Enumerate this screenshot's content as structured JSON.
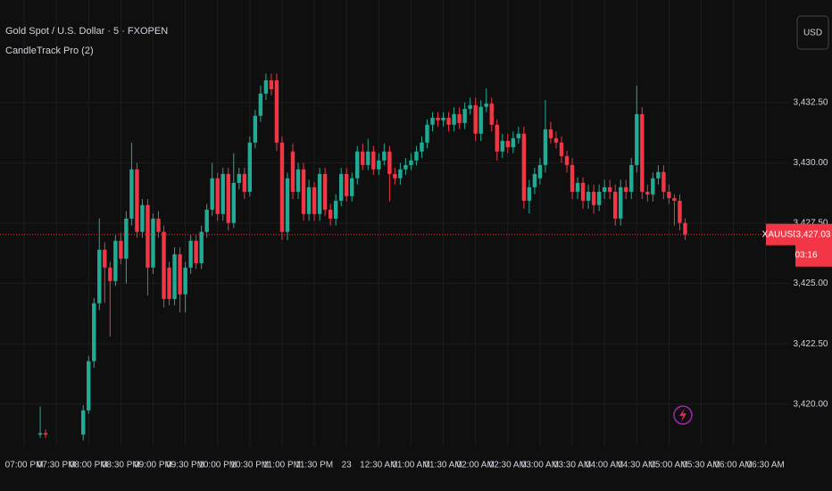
{
  "chart_data": {
    "type": "candlestick",
    "title": "Gold Spot / U.S. Dollar · 5 · FXOPEN",
    "indicator": "CandleTrack Pro (2)",
    "currency_button": "USD",
    "symbol_label": "XAUUSD",
    "last_price": {
      "value": 3427.03,
      "label": "3,427.03"
    },
    "countdown": "03:16",
    "up_color": "#22ab94",
    "down_color": "#f23645",
    "grid": true,
    "ylim": [
      3418.25,
      3436.75
    ],
    "yticks": [
      {
        "value": 3420,
        "label": "3,420.00"
      },
      {
        "value": 3422.5,
        "label": "3,422.50"
      },
      {
        "value": 3425,
        "label": "3,425.00"
      },
      {
        "value": 3427.5,
        "label": "3,427.50"
      },
      {
        "value": 3430,
        "label": "3,430.00"
      },
      {
        "value": 3432.5,
        "label": "3,432.50"
      }
    ],
    "categories": [
      "07:00 PM",
      null,
      null,
      null,
      null,
      null,
      "07:30 PM",
      null,
      null,
      null,
      null,
      null,
      "08:00 PM",
      null,
      null,
      null,
      null,
      null,
      "08:30 PM",
      null,
      null,
      null,
      null,
      null,
      "09:00 PM",
      null,
      null,
      null,
      null,
      null,
      "09:30 PM",
      null,
      null,
      null,
      null,
      null,
      "10:00 PM",
      null,
      null,
      null,
      null,
      null,
      "10:30 PM",
      null,
      null,
      null,
      null,
      null,
      "11:00 PM",
      null,
      null,
      null,
      null,
      null,
      "11:30 PM",
      null,
      null,
      null,
      null,
      null,
      "23",
      null,
      null,
      null,
      null,
      null,
      "12:30 AM",
      null,
      null,
      null,
      null,
      null,
      "01:00 AM",
      null,
      null,
      null,
      null,
      null,
      "01:30 AM",
      null,
      null,
      null,
      null,
      null,
      "02:00 AM",
      null,
      null,
      null,
      null,
      null,
      "02:30 AM",
      null,
      null,
      null,
      null,
      null,
      "03:00 AM",
      null,
      null,
      null,
      null,
      null,
      "03:30 AM",
      null,
      null,
      null,
      null,
      null,
      "04:00 AM",
      null,
      null,
      null,
      null,
      null,
      "04:30 AM",
      null,
      null,
      null,
      null,
      null,
      "05:00 AM",
      null,
      null,
      null,
      null,
      null,
      "05:30 AM",
      null,
      null,
      null,
      null,
      null,
      "06:00 AM",
      null,
      null,
      null,
      null,
      null,
      "06:30 AM"
    ],
    "open": [
      null,
      null,
      null,
      3418.74,
      3418.8,
      null,
      null,
      null,
      null,
      null,
      null,
      3418.74,
      3419.74,
      3421.78,
      3424.18,
      3426.4,
      3425.66,
      3425.1,
      3426.77,
      3426.03,
      3427.69,
      3429.73,
      3427.14,
      3428.25,
      3425.66,
      3427.69,
      3427.14,
      3425.66,
      3424.36,
      3426.21,
      3424.55,
      3425.66,
      3426.77,
      3425.84,
      3427.14,
      3428.06,
      3429.36,
      3427.88,
      3429.54,
      3427.51,
      3429.17,
      3429.54,
      3428.8,
      3430.84,
      3431.95,
      3432.87,
      3433.42,
      3433.42,
      3430.84,
      3427.14,
      3430.47,
      3428.8,
      3429.73,
      3427.88,
      3428.99,
      3427.88,
      3429.54,
      3428.06,
      3427.69,
      3428.43,
      3429.54,
      3428.62,
      3429.36,
      3430.47,
      3429.91,
      3430.47,
      3429.73,
      3430.1,
      3430.47,
      3429.54,
      3429.36,
      3429.73,
      3429.91,
      3430.1,
      3430.47,
      3430.84,
      3431.58,
      3431.87,
      3431.76,
      3431.87,
      3431.58,
      3432.02,
      3431.65,
      3432.24,
      3432.39,
      3431.21,
      3432.32,
      3432.46,
      3431.58,
      3430.47,
      3430.91,
      3430.65,
      3431.02,
      3431.21,
      3428.43,
      3428.99,
      3429.36,
      3429.91,
      3431.39,
      3431.02,
      3430.84,
      3430.28,
      3429.91,
      3428.8,
      3429.17,
      3428.43,
      3428.8,
      3428.25,
      3428.8,
      3428.99,
      3428.8,
      3427.69,
      3428.99,
      3428.8,
      3429.91,
      3432.02,
      3428.8,
      3428.69,
      3429.36,
      3429.62,
      3428.8,
      3428.54,
      3428.43,
      3427.51,
      null,
      null,
      null,
      null,
      null,
      null,
      null,
      null,
      null,
      null,
      null,
      null,
      null,
      null,
      null
    ],
    "high": [
      null,
      null,
      null,
      3419.9,
      3418.95,
      null,
      null,
      null,
      null,
      null,
      null,
      3419.95,
      3422.0,
      3424.4,
      3427.7,
      3426.7,
      3425.9,
      3427.0,
      3427.1,
      3428.0,
      3430.84,
      3430.0,
      3428.5,
      3428.5,
      3427.9,
      3428.0,
      3427.4,
      3425.9,
      3426.5,
      3426.5,
      3425.9,
      3427.0,
      3427.0,
      3427.4,
      3428.3,
      3430.0,
      3429.6,
      3429.8,
      3429.8,
      3430.4,
      3429.8,
      3429.8,
      3431.1,
      3432.2,
      3433.2,
      3433.7,
      3433.7,
      3433.7,
      3431.1,
      3429.6,
      3430.8,
      3430.0,
      3430.0,
      3429.3,
      3429.2,
      3429.8,
      3429.8,
      3428.3,
      3428.7,
      3429.8,
      3429.8,
      3429.6,
      3430.7,
      3430.8,
      3431.0,
      3430.7,
      3430.4,
      3430.8,
      3430.7,
      3429.8,
      3430.0,
      3430.2,
      3430.4,
      3430.7,
      3431.1,
      3431.8,
      3432.1,
      3432.1,
      3432.1,
      3432.1,
      3432.3,
      3432.3,
      3432.5,
      3432.7,
      3432.7,
      3432.6,
      3433.1,
      3432.7,
      3431.8,
      3431.2,
      3431.2,
      3431.3,
      3431.5,
      3431.5,
      3429.3,
      3429.8,
      3430.2,
      3432.6,
      3431.7,
      3431.3,
      3431.1,
      3430.5,
      3430.2,
      3429.4,
      3429.4,
      3429.1,
      3429.1,
      3429.1,
      3429.3,
      3429.3,
      3429.1,
      3429.3,
      3429.3,
      3430.2,
      3433.2,
      3432.3,
      3429.1,
      3429.6,
      3429.9,
      3429.9,
      3429.1,
      3428.7,
      3428.7,
      3427.7,
      null,
      null,
      null,
      null,
      null,
      null,
      null,
      null,
      null,
      null,
      null,
      null,
      null,
      null,
      null
    ],
    "low": [
      null,
      null,
      null,
      3418.6,
      3418.6,
      null,
      null,
      null,
      null,
      null,
      null,
      3418.5,
      3419.6,
      3421.5,
      3423.9,
      3424.2,
      3422.8,
      3424.9,
      3425.8,
      3425.0,
      3427.4,
      3426.9,
      3426.9,
      3424.5,
      3425.4,
      3426.9,
      3424.0,
      3424.1,
      3424.1,
      3423.8,
      3423.8,
      3425.4,
      3425.6,
      3425.6,
      3426.9,
      3427.8,
      3427.6,
      3427.6,
      3427.2,
      3427.3,
      3428.9,
      3428.5,
      3428.6,
      3430.6,
      3431.7,
      3432.6,
      3432.8,
      3430.5,
      3426.8,
      3426.8,
      3428.5,
      3428.5,
      3427.6,
      3427.6,
      3427.6,
      3427.6,
      3427.8,
      3427.4,
      3427.4,
      3428.2,
      3428.4,
      3428.4,
      3429.1,
      3429.7,
      3429.7,
      3429.5,
      3429.5,
      3429.9,
      3428.4,
      3429.1,
      3429.1,
      3429.5,
      3429.7,
      3429.9,
      3430.2,
      3430.6,
      3431.3,
      3431.5,
      3431.5,
      3431.3,
      3431.3,
      3431.4,
      3431.4,
      3432.0,
      3430.9,
      3430.9,
      3432.1,
      3431.3,
      3430.1,
      3430.2,
      3430.4,
      3430.4,
      3430.8,
      3428.1,
      3427.9,
      3428.7,
      3429.1,
      3429.6,
      3430.8,
      3430.6,
      3430.0,
      3429.6,
      3428.5,
      3428.5,
      3428.1,
      3428.1,
      3427.9,
      3428.0,
      3428.5,
      3428.5,
      3427.4,
      3427.4,
      3428.5,
      3428.5,
      3429.6,
      3428.5,
      3428.4,
      3428.4,
      3429.1,
      3428.5,
      3428.3,
      3427.4,
      3427.2,
      3426.8,
      null,
      null,
      null,
      null,
      null,
      null,
      null,
      null,
      null,
      null,
      null,
      null,
      null,
      null,
      null
    ],
    "close": [
      null,
      null,
      null,
      3418.8,
      3418.74,
      null,
      null,
      null,
      null,
      null,
      null,
      3419.74,
      3421.78,
      3424.18,
      3426.4,
      3425.66,
      3425.1,
      3426.77,
      3426.03,
      3427.69,
      3429.73,
      3427.14,
      3428.25,
      3425.66,
      3427.69,
      3427.14,
      3424.36,
      3424.36,
      3426.21,
      3424.55,
      3425.66,
      3426.77,
      3425.84,
      3427.14,
      3428.06,
      3429.36,
      3427.88,
      3429.54,
      3427.51,
      3429.17,
      3429.54,
      3428.8,
      3430.84,
      3431.95,
      3432.87,
      3433.42,
      3433.05,
      3430.84,
      3427.14,
      3429.36,
      3428.8,
      3429.73,
      3427.88,
      3428.99,
      3427.88,
      3429.54,
      3428.06,
      3427.69,
      3428.43,
      3429.54,
      3428.62,
      3429.36,
      3430.47,
      3429.91,
      3430.47,
      3429.73,
      3430.1,
      3430.47,
      3429.54,
      3429.36,
      3429.73,
      3429.91,
      3430.1,
      3430.47,
      3430.84,
      3431.58,
      3431.87,
      3431.76,
      3431.87,
      3431.58,
      3432.02,
      3431.65,
      3432.24,
      3432.39,
      3431.21,
      3432.32,
      3432.46,
      3431.58,
      3430.47,
      3430.91,
      3430.65,
      3431.02,
      3431.21,
      3428.43,
      3428.99,
      3429.54,
      3429.91,
      3431.39,
      3431.02,
      3430.84,
      3430.28,
      3429.91,
      3428.8,
      3429.17,
      3428.43,
      3428.8,
      3428.25,
      3428.8,
      3428.99,
      3428.8,
      3427.69,
      3428.99,
      3428.8,
      3429.91,
      3432.02,
      3428.8,
      3428.69,
      3429.36,
      3429.62,
      3428.8,
      3428.54,
      3428.43,
      3427.51,
      3427.03,
      null,
      null,
      null,
      null,
      null,
      null,
      null,
      null,
      null,
      null,
      null,
      null,
      null,
      null,
      null
    ]
  }
}
